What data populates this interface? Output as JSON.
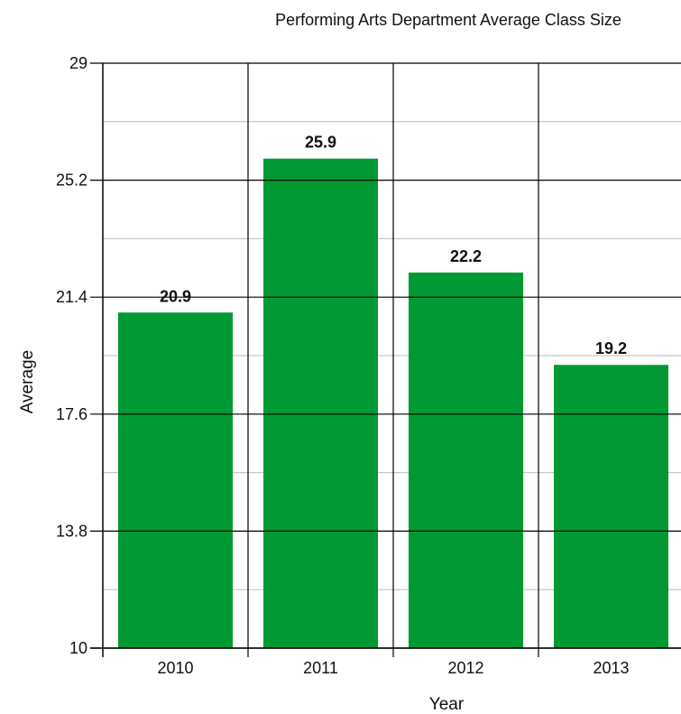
{
  "chart_data": {
    "type": "bar",
    "title": "Performing  Arts Department Average Class Size",
    "xlabel": "Year",
    "ylabel": "Average",
    "categories": [
      "2010",
      "2011",
      "2012",
      "2013"
    ],
    "values": [
      20.9,
      25.9,
      22.2,
      19.2
    ],
    "data_labels": [
      "20.9",
      "25.9",
      "22.2",
      "19.2"
    ],
    "ylim": [
      10,
      29
    ],
    "yticks": [
      10,
      13.8,
      17.6,
      21.4,
      25.2,
      29
    ],
    "ytick_labels": [
      "10",
      "13.8",
      "17.6",
      "21.4",
      "25.2",
      "29"
    ],
    "grid": true,
    "legend": "none",
    "colors": {
      "bar": "#009933",
      "major_grid": "#000000",
      "minor_grid": "#bbbbbb"
    }
  }
}
